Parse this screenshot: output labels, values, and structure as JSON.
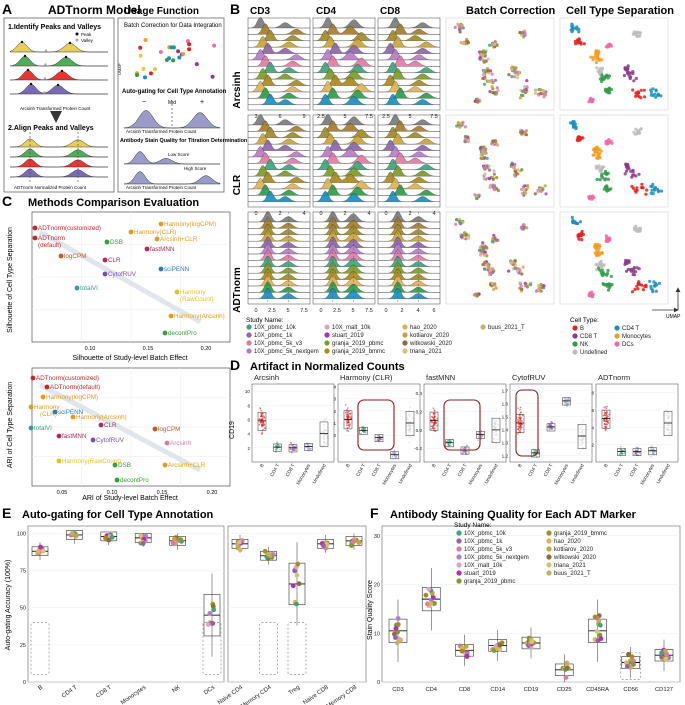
{
  "panels": {
    "A": {
      "letter": "A",
      "title": "ADTnorm Model",
      "step1": "1.Identify Peaks and Valleys",
      "step2": "2.Align Peaks and Valleys",
      "legend_peak": "Peak",
      "legend_valley": "Valley",
      "xlabel_transformed": "Arcsinh Transformed Protein Count",
      "xlabel_normalized": "ADTnorm Normalized Protein Count",
      "usage_title": "Usage Function",
      "usage_batch": "Batch Correction for Data Integration",
      "usage_umap": "UMAP",
      "usage_gating": "Auto-gating for Cell Type Annotation",
      "gate_minus": "−",
      "gate_mid": "Mid",
      "gate_plus": "+",
      "usage_gating_xlabel": "Arcsinh Transformed Protein Count",
      "usage_stain": "Antibody Stain Quality for Titration Determination",
      "stain_low": "Low Score",
      "stain_high": "High Score",
      "usage_stain_xlabel": "Arcsinh Transformed Protein Count"
    },
    "B": {
      "letter": "B",
      "col_headers": [
        "CD3",
        "CD4",
        "CD8"
      ],
      "row_labels": [
        "Arcsinh",
        "CLR",
        "ADTnorm"
      ],
      "batch_title": "Batch Correction",
      "celltype_title": "Cell Type Separation",
      "umap_label": "UMAP",
      "ticks": {
        "arcsinh": [
          [
            "3",
            "6",
            "9"
          ],
          [
            "2.5",
            "5",
            "7.5"
          ],
          [
            "2.5",
            "5",
            "7.5"
          ]
        ],
        "clr": [
          [
            "0",
            "2",
            "4"
          ],
          [
            "0",
            "2",
            "4"
          ],
          [
            "0",
            "2",
            "4"
          ]
        ],
        "adtnorm": [
          [
            "0",
            "2.5",
            "5",
            "7.5"
          ],
          [
            "0",
            "2.5",
            "5",
            "7.5"
          ],
          [
            "0",
            "2",
            "4",
            "6"
          ]
        ]
      },
      "study_legend_title": "Study Name:",
      "studies": [
        {
          "name": "10X_pbmc_10k",
          "color": "#3fa37c"
        },
        {
          "name": "10X_pbmc_1k",
          "color": "#8e66a8"
        },
        {
          "name": "10X_pbmc_5k_v3",
          "color": "#e07aa4"
        },
        {
          "name": "10X_pbmc_5k_nextgem",
          "color": "#b77cc5"
        },
        {
          "name": "10X_malt_10k",
          "color": "#e0a4c3"
        },
        {
          "name": "stuart_2019",
          "color": "#b12fb0"
        },
        {
          "name": "granja_2019_pbmc",
          "color": "#7e9b2b"
        },
        {
          "name": "granja_2019_bmmc",
          "color": "#aa8a1e"
        },
        {
          "name": "hao_2020",
          "color": "#dbb35a"
        },
        {
          "name": "kotliarov_2020",
          "color": "#c9a43a"
        },
        {
          "name": "witkowski_2020",
          "color": "#8c6d3a"
        },
        {
          "name": "triana_2021",
          "color": "#d7c07a"
        },
        {
          "name": "buus_2021_T",
          "color": "#c4b067"
        }
      ],
      "celltype_legend_title": "Cell Type:",
      "celltypes": [
        {
          "name": "B",
          "color": "#e6201f"
        },
        {
          "name": "CD4 T",
          "color": "#1b8fbf"
        },
        {
          "name": "CD8 T",
          "color": "#8c3a8c"
        },
        {
          "name": "Monocytes",
          "color": "#f39c1f"
        },
        {
          "name": "NK",
          "color": "#2f9b49"
        },
        {
          "name": "DCs",
          "color": "#f06ba7"
        },
        {
          "name": "Undefined",
          "color": "#bdbdbd"
        }
      ]
    },
    "C": {
      "letter": "C",
      "title": "Methods Comparison Evaluation",
      "top_ylabel": "Silhouette of Cell Type Separation",
      "top_xlabel": "Silhouette of Study-level Batch Effect",
      "top_xticks": [
        "0.10",
        "0.15",
        "0.20"
      ],
      "bottom_ylabel": "ARI of Cell Type Separation",
      "bottom_xlabel": "ARI of Study-level Batch Effect",
      "bottom_xticks": [
        "0.05",
        "0.10",
        "0.15",
        "0.20"
      ],
      "top_labels": [
        {
          "text": "ADTnorm(customized)",
          "color": "#c62828"
        },
        {
          "text": "ADTnorm",
          "color": "#c62828"
        },
        {
          "text": "(default)",
          "color": "#c62828"
        },
        {
          "text": "Harmony(CLR)",
          "color": "#e39b1f"
        },
        {
          "text": "Harmony(logCPM)",
          "color": "#e39b1f"
        },
        {
          "text": "DSB",
          "color": "#3a9b3a"
        },
        {
          "text": "Arcsinh+CLR",
          "color": "#e39b1f"
        },
        {
          "text": "logCPM",
          "color": "#c6572a"
        },
        {
          "text": "fastMNN",
          "color": "#b22a5a"
        },
        {
          "text": "CLR",
          "color": "#b22a5a"
        },
        {
          "text": "CytofRUV",
          "color": "#7a4fa8"
        },
        {
          "text": "sciPENN",
          "color": "#2a7bbf"
        },
        {
          "text": "totalVI",
          "color": "#3a9b8a"
        },
        {
          "text": "Harmony",
          "color": "#e3c21f"
        },
        {
          "text": "(RawCount)",
          "color": "#e3c21f"
        },
        {
          "text": "Harmony(Arcsinh)",
          "color": "#e39b1f"
        },
        {
          "text": "decontPro",
          "color": "#3a9b3a"
        }
      ],
      "bottom_labels": [
        {
          "text": "ADTnorm(customized)",
          "color": "#c62828"
        },
        {
          "text": "ADTnorm(default)",
          "color": "#c62828"
        },
        {
          "text": "Harmony(logCPM)",
          "color": "#e39b1f"
        },
        {
          "text": "Harmony",
          "color": "#e39b1f"
        },
        {
          "text": "(CLR)",
          "color": "#e39b1f"
        },
        {
          "text": "sciPENN",
          "color": "#2a7bbf"
        },
        {
          "text": "Harmony(Arcsinh)",
          "color": "#e39b1f"
        },
        {
          "text": "totalVI",
          "color": "#3a9b8a"
        },
        {
          "text": "CLR",
          "color": "#b22a5a"
        },
        {
          "text": "fastMNN",
          "color": "#b22a5a"
        },
        {
          "text": "CytofRUV",
          "color": "#7a4fa8"
        },
        {
          "text": "logCPM",
          "color": "#c6572a"
        },
        {
          "text": "Arcsinh",
          "color": "#e07aa4"
        },
        {
          "text": "Harmony(RawCount)",
          "color": "#e3c21f"
        },
        {
          "text": "DSB",
          "color": "#3a9b3a"
        },
        {
          "text": "Arcsinh+CLR",
          "color": "#e39b1f"
        },
        {
          "text": "decontPro",
          "color": "#3a9b3a"
        }
      ]
    },
    "D": {
      "letter": "D",
      "title": "Artifact in Normalized Counts",
      "ylabel": "CD19",
      "subpanels": [
        "Arcsinh",
        "Harmony (CLR)",
        "fastMNN",
        "CytofRUV",
        "ADTnorm"
      ],
      "categories": [
        "B",
        "CD4 T",
        "CD8 T",
        "Monocytes",
        "Undefined"
      ],
      "yticks": [
        [
          "2",
          "4",
          "6",
          "8",
          "10"
        ],
        [
          "0",
          "1",
          "2",
          "3",
          "4"
        ],
        [
          "-0.2",
          "0.0",
          "0.2",
          "0.4"
        ],
        [
          "1.2",
          "1.3",
          "1.4",
          "1.5",
          "1.6",
          "1.7"
        ],
        [
          "2",
          "4",
          "6",
          "8"
        ]
      ],
      "medians": [
        [
          5.8,
          2.1,
          2.0,
          2.2,
          4.0
        ],
        [
          1.3,
          0.4,
          -0.2,
          -1.6,
          1.0
        ],
        [
          0.1,
          -0.14,
          -0.22,
          -0.05,
          0.0
        ],
        [
          1.45,
          1.22,
          1.42,
          1.62,
          1.35
        ],
        [
          5.0,
          1.2,
          1.2,
          1.3,
          4.5
        ]
      ]
    },
    "E": {
      "letter": "E",
      "title": "Auto-gating for Cell Type Annotation",
      "ylabel": "Auto-gating Accuracy (100%)",
      "yticks": [
        "0",
        "25",
        "50",
        "75",
        "100"
      ],
      "left_categories": [
        "B",
        "CD4 T",
        "CD8 T",
        "Monocytes",
        "NK",
        "DCs"
      ],
      "right_categories": [
        "Naive CD4",
        "Memory CD4",
        "Treg",
        "Naive CD8",
        "Memory CD8"
      ],
      "left_medians": [
        88,
        99,
        98,
        97,
        95,
        45
      ],
      "right_medians": [
        93,
        85,
        66,
        93,
        95
      ]
    },
    "F": {
      "letter": "F",
      "title": "Antibody Staining Quality for Each ADT Marker",
      "ylabel": "Stain Quality Score",
      "yticks": [
        "0",
        "10",
        "20",
        "30"
      ],
      "categories": [
        "CD3",
        "CD4",
        "CD8",
        "CD14",
        "CD19",
        "CD25",
        "CD45RA",
        "CD56",
        "CD127"
      ],
      "medians": [
        10.5,
        17,
        6.5,
        7.5,
        8,
        2.5,
        10.5,
        4,
        5.5
      ],
      "legend_title": "Study Name:"
    }
  },
  "colors": {
    "arcsinh_fill": "#a47c2c",
    "dark_red": "#8b1c1c",
    "grid": "#ebebeb",
    "panel_bg": "#ffffff"
  }
}
